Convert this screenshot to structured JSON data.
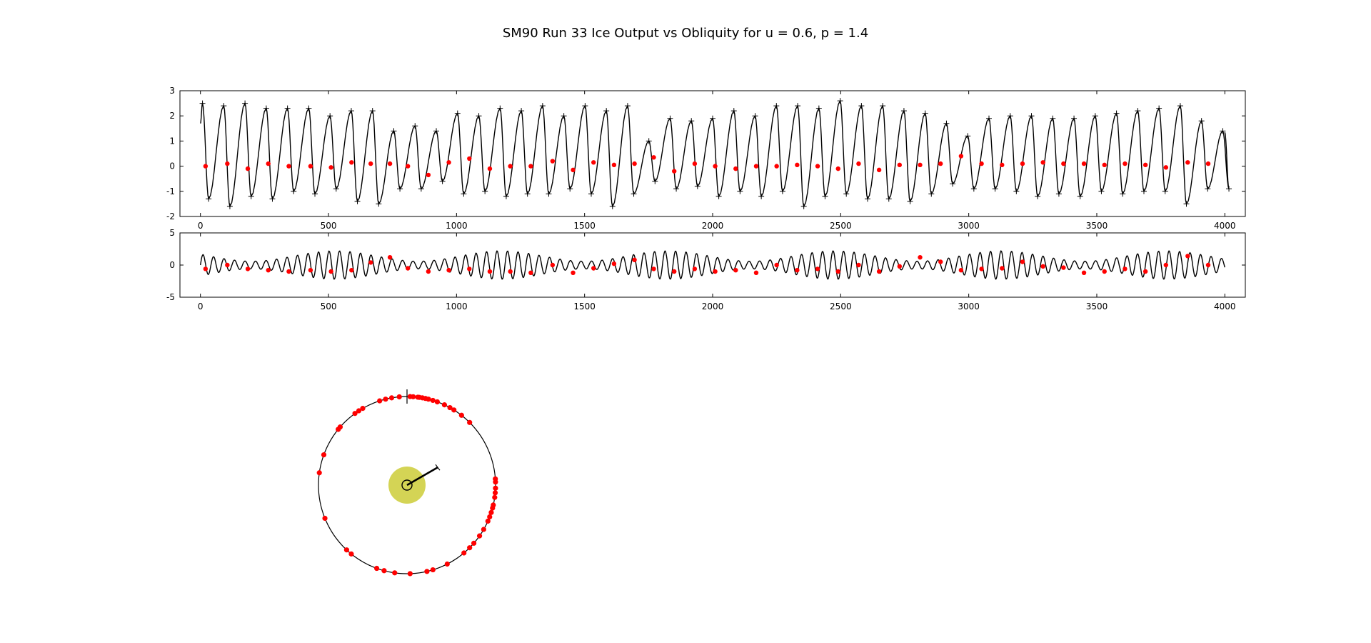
{
  "figure": {
    "title": "SM90 Run 33 Ice Output vs Obliquity for u = 0.6, p = 1.4"
  },
  "colors": {
    "line": "#000000",
    "marker": "#ff0000",
    "sun": "#d4d455"
  },
  "chart_data": [
    {
      "type": "line",
      "name": "ice-output-panel",
      "xlim": [
        -80,
        4080
      ],
      "ylim": [
        -2,
        3
      ],
      "xticks": [
        "0",
        "500",
        "1000",
        "1500",
        "2000",
        "2500",
        "3000",
        "3500",
        "4000"
      ],
      "yticks": [
        "-2",
        "-1",
        "0",
        "1",
        "2",
        "3"
      ],
      "xtick_values": [
        0,
        500,
        1000,
        1500,
        2000,
        2500,
        3000,
        3500,
        4000
      ],
      "ytick_values": [
        -2,
        -1,
        0,
        1,
        2,
        3
      ],
      "grid": false,
      "series": [
        {
          "style": "black line with + markers at peaks and troughs",
          "sample_step": 10,
          "cycle_period": 83,
          "peaks": [
            2.5,
            2.4,
            2.5,
            2.3,
            2.3,
            2.3,
            2.0,
            2.2,
            2.2,
            1.4,
            1.6,
            1.4,
            2.1,
            2.0,
            2.3,
            2.2,
            2.4,
            2.0,
            2.4,
            2.2,
            2.4,
            1.0,
            1.9,
            1.8,
            1.9,
            2.2,
            2.0,
            2.4,
            2.4,
            2.3,
            2.6,
            2.4,
            2.4,
            2.2,
            2.1,
            1.7,
            1.2,
            1.9,
            2.0,
            2.0,
            1.9,
            1.9,
            2.0,
            2.1,
            2.2,
            2.3,
            2.4,
            1.8,
            1.4
          ],
          "troughs": [
            -1.3,
            -1.6,
            -1.2,
            -1.3,
            -1.0,
            -1.1,
            -0.9,
            -1.4,
            -1.5,
            -0.9,
            -0.9,
            -0.6,
            -1.1,
            -1.0,
            -1.2,
            -1.1,
            -1.1,
            -0.9,
            -1.1,
            -1.6,
            -1.1,
            -0.6,
            -0.9,
            -0.8,
            -1.2,
            -1.0,
            -1.2,
            -1.0,
            -1.6,
            -1.2,
            -1.1,
            -1.3,
            -1.3,
            -1.4,
            -1.1,
            -0.7,
            -0.9,
            -0.9,
            -1.0,
            -1.2,
            -1.1,
            -1.2,
            -1.0,
            -1.1,
            -1.0,
            -1.0,
            -1.5,
            -0.9,
            -0.9
          ],
          "start_value": 1.7,
          "end_value": 1.35
        },
        {
          "style": "red dots",
          "x": [
            20,
            105,
            185,
            265,
            345,
            430,
            510,
            590,
            665,
            740,
            810,
            890,
            970,
            1050,
            1130,
            1210,
            1290,
            1375,
            1455,
            1535,
            1615,
            1695,
            1770,
            1850,
            1930,
            2010,
            2090,
            2170,
            2250,
            2330,
            2410,
            2490,
            2570,
            2650,
            2730,
            2810,
            2890,
            2970,
            3050,
            3130,
            3210,
            3290,
            3370,
            3450,
            3530,
            3610,
            3690,
            3770,
            3855,
            3935
          ],
          "y": [
            0.0,
            0.1,
            -0.1,
            0.1,
            0.0,
            0.0,
            -0.05,
            0.15,
            0.1,
            0.1,
            0.0,
            -0.35,
            0.15,
            0.3,
            -0.1,
            0.0,
            0.0,
            0.2,
            -0.15,
            0.15,
            0.05,
            0.1,
            0.35,
            -0.2,
            0.1,
            0.0,
            -0.1,
            0.0,
            0.0,
            0.05,
            0.0,
            -0.1,
            0.1,
            -0.15,
            0.05,
            0.05,
            0.1,
            0.4,
            0.1,
            0.05,
            0.1,
            0.15,
            0.1,
            0.1,
            0.05,
            0.1,
            0.05,
            -0.05,
            0.15,
            0.1
          ]
        }
      ]
    },
    {
      "type": "line",
      "name": "obliquity-panel",
      "xlim": [
        -80,
        4080
      ],
      "ylim": [
        -5,
        5
      ],
      "xticks": [
        "0",
        "500",
        "1000",
        "1500",
        "2000",
        "2500",
        "3000",
        "3500",
        "4000"
      ],
      "yticks": [
        "-5",
        "0",
        "5"
      ],
      "xtick_values": [
        0,
        500,
        1000,
        1500,
        2000,
        2500,
        3000,
        3500,
        4000
      ],
      "ytick_values": [
        -5,
        0,
        5
      ],
      "grid": false,
      "series": [
        {
          "style": "black line",
          "sample_step": 5,
          "oscillation_period": 41,
          "amplitude_range": [
            0.6,
            2.2
          ],
          "envelope_period": 650
        },
        {
          "style": "red dots",
          "x": [
            20,
            105,
            185,
            265,
            345,
            430,
            510,
            590,
            665,
            740,
            810,
            890,
            970,
            1050,
            1130,
            1210,
            1290,
            1375,
            1455,
            1535,
            1615,
            1695,
            1770,
            1850,
            1930,
            2010,
            2090,
            2170,
            2250,
            2330,
            2410,
            2490,
            2570,
            2650,
            2730,
            2810,
            2890,
            2970,
            3050,
            3130,
            3210,
            3290,
            3370,
            3450,
            3530,
            3610,
            3690,
            3770,
            3855,
            3935
          ],
          "y": [
            -0.6,
            0.0,
            -0.6,
            -0.8,
            -1.0,
            -0.8,
            -1.0,
            -0.8,
            0.4,
            1.2,
            -0.5,
            -1.0,
            -0.8,
            -0.6,
            -1.0,
            -1.0,
            -1.2,
            0.0,
            -1.2,
            -0.5,
            0.2,
            0.8,
            -0.6,
            -1.0,
            -0.6,
            -1.0,
            -0.8,
            -1.2,
            0.0,
            -0.8,
            -0.6,
            -1.0,
            0.0,
            -1.0,
            -0.2,
            1.2,
            0.5,
            -0.8,
            -0.6,
            -0.5,
            0.5,
            -0.2,
            -0.4,
            -1.2,
            -1.0,
            -0.6,
            -1.0,
            0.0,
            1.4,
            0.0
          ]
        }
      ]
    },
    {
      "type": "scatter",
      "name": "orbit-panel",
      "radius": 1,
      "tick_angle_deg": 90,
      "arrow": {
        "angle_deg": 30,
        "length": 0.4
      },
      "angles_deg": [
        95,
        100,
        104,
        108,
        120,
        123,
        126,
        139,
        141,
        160,
        172,
        202,
        227,
        231,
        250,
        255,
        262,
        272,
        283,
        287,
        297,
        310,
        315,
        319,
        325,
        330,
        336,
        339,
        342,
        345,
        347,
        352,
        355,
        358,
        2,
        4,
        45,
        52,
        58,
        61,
        65,
        70,
        73,
        76,
        78,
        80,
        82,
        86,
        88,
        83
      ]
    }
  ]
}
